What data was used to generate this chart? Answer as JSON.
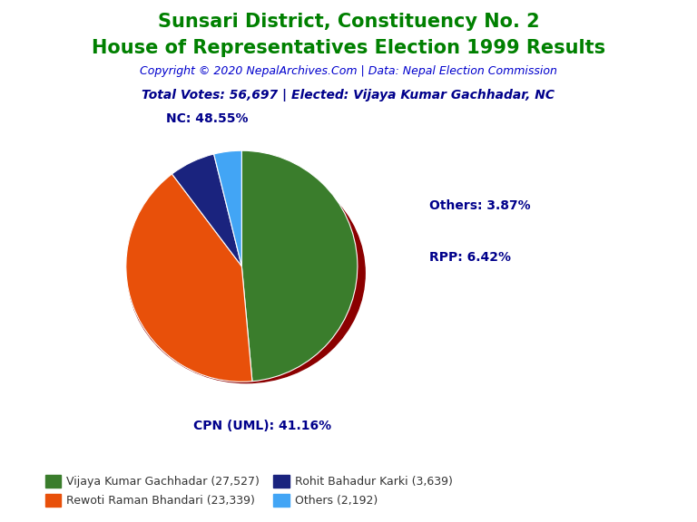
{
  "title_line1": "Sunsari District, Constituency No. 2",
  "title_line2": "House of Representatives Election 1999 Results",
  "title_color": "#008000",
  "copyright_text": "Copyright © 2020 NepalArchives.Com | Data: Nepal Election Commission",
  "copyright_color": "#0000CD",
  "total_votes_text": "Total Votes: 56,697 | Elected: Vijaya Kumar Gachhadar, NC",
  "total_votes_color": "#00008B",
  "slices": [
    {
      "label": "NC",
      "value": 27527,
      "pct": 48.55,
      "color": "#3a7d2c"
    },
    {
      "label": "CPN (UML)",
      "value": 23339,
      "pct": 41.16,
      "color": "#e8500a"
    },
    {
      "label": "RPP",
      "value": 3639,
      "pct": 6.42,
      "color": "#1a237e"
    },
    {
      "label": "Others",
      "value": 2192,
      "pct": 3.87,
      "color": "#42a5f5"
    }
  ],
  "legend_entries": [
    {
      "label": "Vijaya Kumar Gachhadar (27,527)",
      "color": "#3a7d2c"
    },
    {
      "label": "Rewoti Raman Bhandari (23,339)",
      "color": "#e8500a"
    },
    {
      "label": "Rohit Bahadur Karki (3,639)",
      "color": "#1a237e"
    },
    {
      "label": "Others (2,192)",
      "color": "#42a5f5"
    }
  ],
  "label_color": "#00008B",
  "background_color": "#ffffff",
  "wedge_edge_color": "#ffffff",
  "shadow_color": "#8B0000"
}
